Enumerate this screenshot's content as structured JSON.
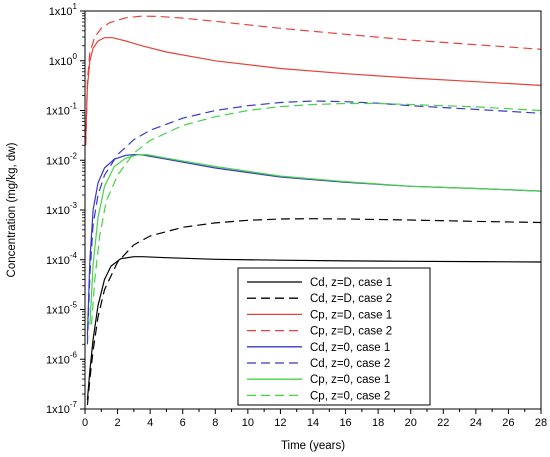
{
  "chart_data": {
    "type": "line",
    "title": "",
    "xlabel": "Time (years)",
    "ylabel": "Concentration (mg/kg, dw)",
    "xlim": [
      0,
      28
    ],
    "ylim": [
      1e-07,
      10
    ],
    "yscale": "log",
    "grid": false,
    "legend_position": "bottom-right",
    "x_ticks": [
      0,
      2,
      4,
      6,
      8,
      10,
      12,
      14,
      16,
      18,
      20,
      22,
      24,
      26,
      28
    ],
    "x_tick_labels": [
      "0",
      "2",
      "4",
      "6",
      "8",
      "10",
      "12",
      "14",
      "16",
      "18",
      "20",
      "22",
      "24",
      "26",
      "28"
    ],
    "y_ticks": [
      1e-07,
      1e-06,
      1e-05,
      0.0001,
      0.001,
      0.01,
      0.1,
      1,
      10
    ],
    "y_tick_labels": [
      {
        "base": "1x10",
        "exp": "-7"
      },
      {
        "base": "1x10",
        "exp": "-6"
      },
      {
        "base": "1x10",
        "exp": "-5"
      },
      {
        "base": "1x10",
        "exp": "-4"
      },
      {
        "base": "1x10",
        "exp": "-3"
      },
      {
        "base": "1x10",
        "exp": "-2"
      },
      {
        "base": "1x10",
        "exp": "-1"
      },
      {
        "base": "1x10",
        "exp": "0"
      },
      {
        "base": "1x10",
        "exp": "1"
      }
    ],
    "series": [
      {
        "name": "Cd, z=D, case 1",
        "color": "#000000",
        "dash": "solid",
        "x": [
          0.15,
          0.3,
          0.5,
          0.8,
          1.2,
          1.6,
          2.2,
          3.0,
          3.5,
          5,
          8,
          12,
          16,
          20,
          24,
          28
        ],
        "y": [
          1.5e-07,
          6e-07,
          2.5e-06,
          1.2e-05,
          4e-05,
          7.5e-05,
          0.000105,
          0.000115,
          0.000115,
          0.00011,
          0.000102,
          9.8e-05,
          9.5e-05,
          9.3e-05,
          9.2e-05,
          9e-05
        ]
      },
      {
        "name": "Cd, z=D, case 2",
        "color": "#000000",
        "dash": "dashed",
        "x": [
          0.15,
          0.3,
          0.5,
          0.8,
          1.2,
          2,
          3,
          4,
          6,
          8,
          10,
          12,
          14,
          16,
          20,
          24,
          28
        ],
        "y": [
          1.2e-07,
          4e-07,
          1.5e-06,
          7e-06,
          2.5e-05,
          9e-05,
          0.0002,
          0.0003,
          0.00045,
          0.00055,
          0.00062,
          0.00066,
          0.00067,
          0.00066,
          0.00063,
          0.00059,
          0.00056
        ]
      },
      {
        "name": "Cp, z=D, case 1",
        "color": "#e8423a",
        "dash": "solid",
        "x": [
          0.05,
          0.15,
          0.3,
          0.5,
          0.8,
          1.2,
          1.7,
          2.5,
          3.5,
          5,
          8,
          12,
          16,
          20,
          24,
          28
        ],
        "y": [
          0.03,
          0.3,
          1.0,
          1.8,
          2.5,
          2.9,
          2.9,
          2.5,
          2.0,
          1.5,
          1.0,
          0.7,
          0.55,
          0.45,
          0.38,
          0.32
        ]
      },
      {
        "name": "Cp, z=D, case 2",
        "color": "#e8423a",
        "dash": "dashed",
        "x": [
          0.05,
          0.15,
          0.3,
          0.6,
          1.0,
          1.5,
          2.5,
          3.5,
          4.5,
          6,
          8,
          12,
          16,
          20,
          24,
          28
        ],
        "y": [
          0.02,
          0.4,
          1.5,
          3.0,
          4.5,
          5.8,
          7.3,
          7.9,
          7.8,
          7.2,
          6.2,
          4.5,
          3.4,
          2.6,
          2.1,
          1.7
        ]
      },
      {
        "name": "Cd, z=0, case 1",
        "color": "#3838c8",
        "dash": "solid",
        "x": [
          0.15,
          0.3,
          0.5,
          0.8,
          1.2,
          1.8,
          2.5,
          3.0,
          3.5,
          5,
          8,
          12,
          16,
          20,
          24,
          28
        ],
        "y": [
          3e-06,
          0.0001,
          0.001,
          0.0035,
          0.007,
          0.0105,
          0.0125,
          0.013,
          0.0128,
          0.0105,
          0.007,
          0.0046,
          0.0036,
          0.003,
          0.0027,
          0.0024
        ]
      },
      {
        "name": "Cd, z=0, case 2",
        "color": "#3838c8",
        "dash": "dashed",
        "x": [
          0.15,
          0.3,
          0.5,
          0.8,
          1.2,
          2,
          3,
          4,
          6,
          8,
          10,
          12,
          14,
          16,
          18,
          20,
          24,
          28
        ],
        "y": [
          2e-06,
          5e-05,
          0.0005,
          0.002,
          0.005,
          0.013,
          0.026,
          0.04,
          0.07,
          0.1,
          0.125,
          0.145,
          0.155,
          0.15,
          0.14,
          0.125,
          0.105,
          0.088
        ]
      },
      {
        "name": "Cp, z=0, case 1",
        "color": "#44d444",
        "dash": "solid",
        "x": [
          0.3,
          0.5,
          0.8,
          1.2,
          1.8,
          2.5,
          3.2,
          3.8,
          5,
          8,
          12,
          16,
          20,
          24,
          28
        ],
        "y": [
          5e-06,
          8e-05,
          0.0007,
          0.003,
          0.0075,
          0.011,
          0.0128,
          0.013,
          0.011,
          0.0075,
          0.0048,
          0.0037,
          0.003,
          0.0027,
          0.0024
        ]
      },
      {
        "name": "Cp, z=0, case 2",
        "color": "#44d444",
        "dash": "dashed",
        "x": [
          0.4,
          0.6,
          0.9,
          1.3,
          2,
          3,
          4,
          6,
          8,
          10,
          12,
          14,
          16,
          18,
          20,
          24,
          28
        ],
        "y": [
          5e-06,
          4e-05,
          0.0003,
          0.0015,
          0.005,
          0.014,
          0.025,
          0.05,
          0.075,
          0.1,
          0.12,
          0.132,
          0.138,
          0.138,
          0.132,
          0.118,
          0.1
        ]
      }
    ]
  }
}
